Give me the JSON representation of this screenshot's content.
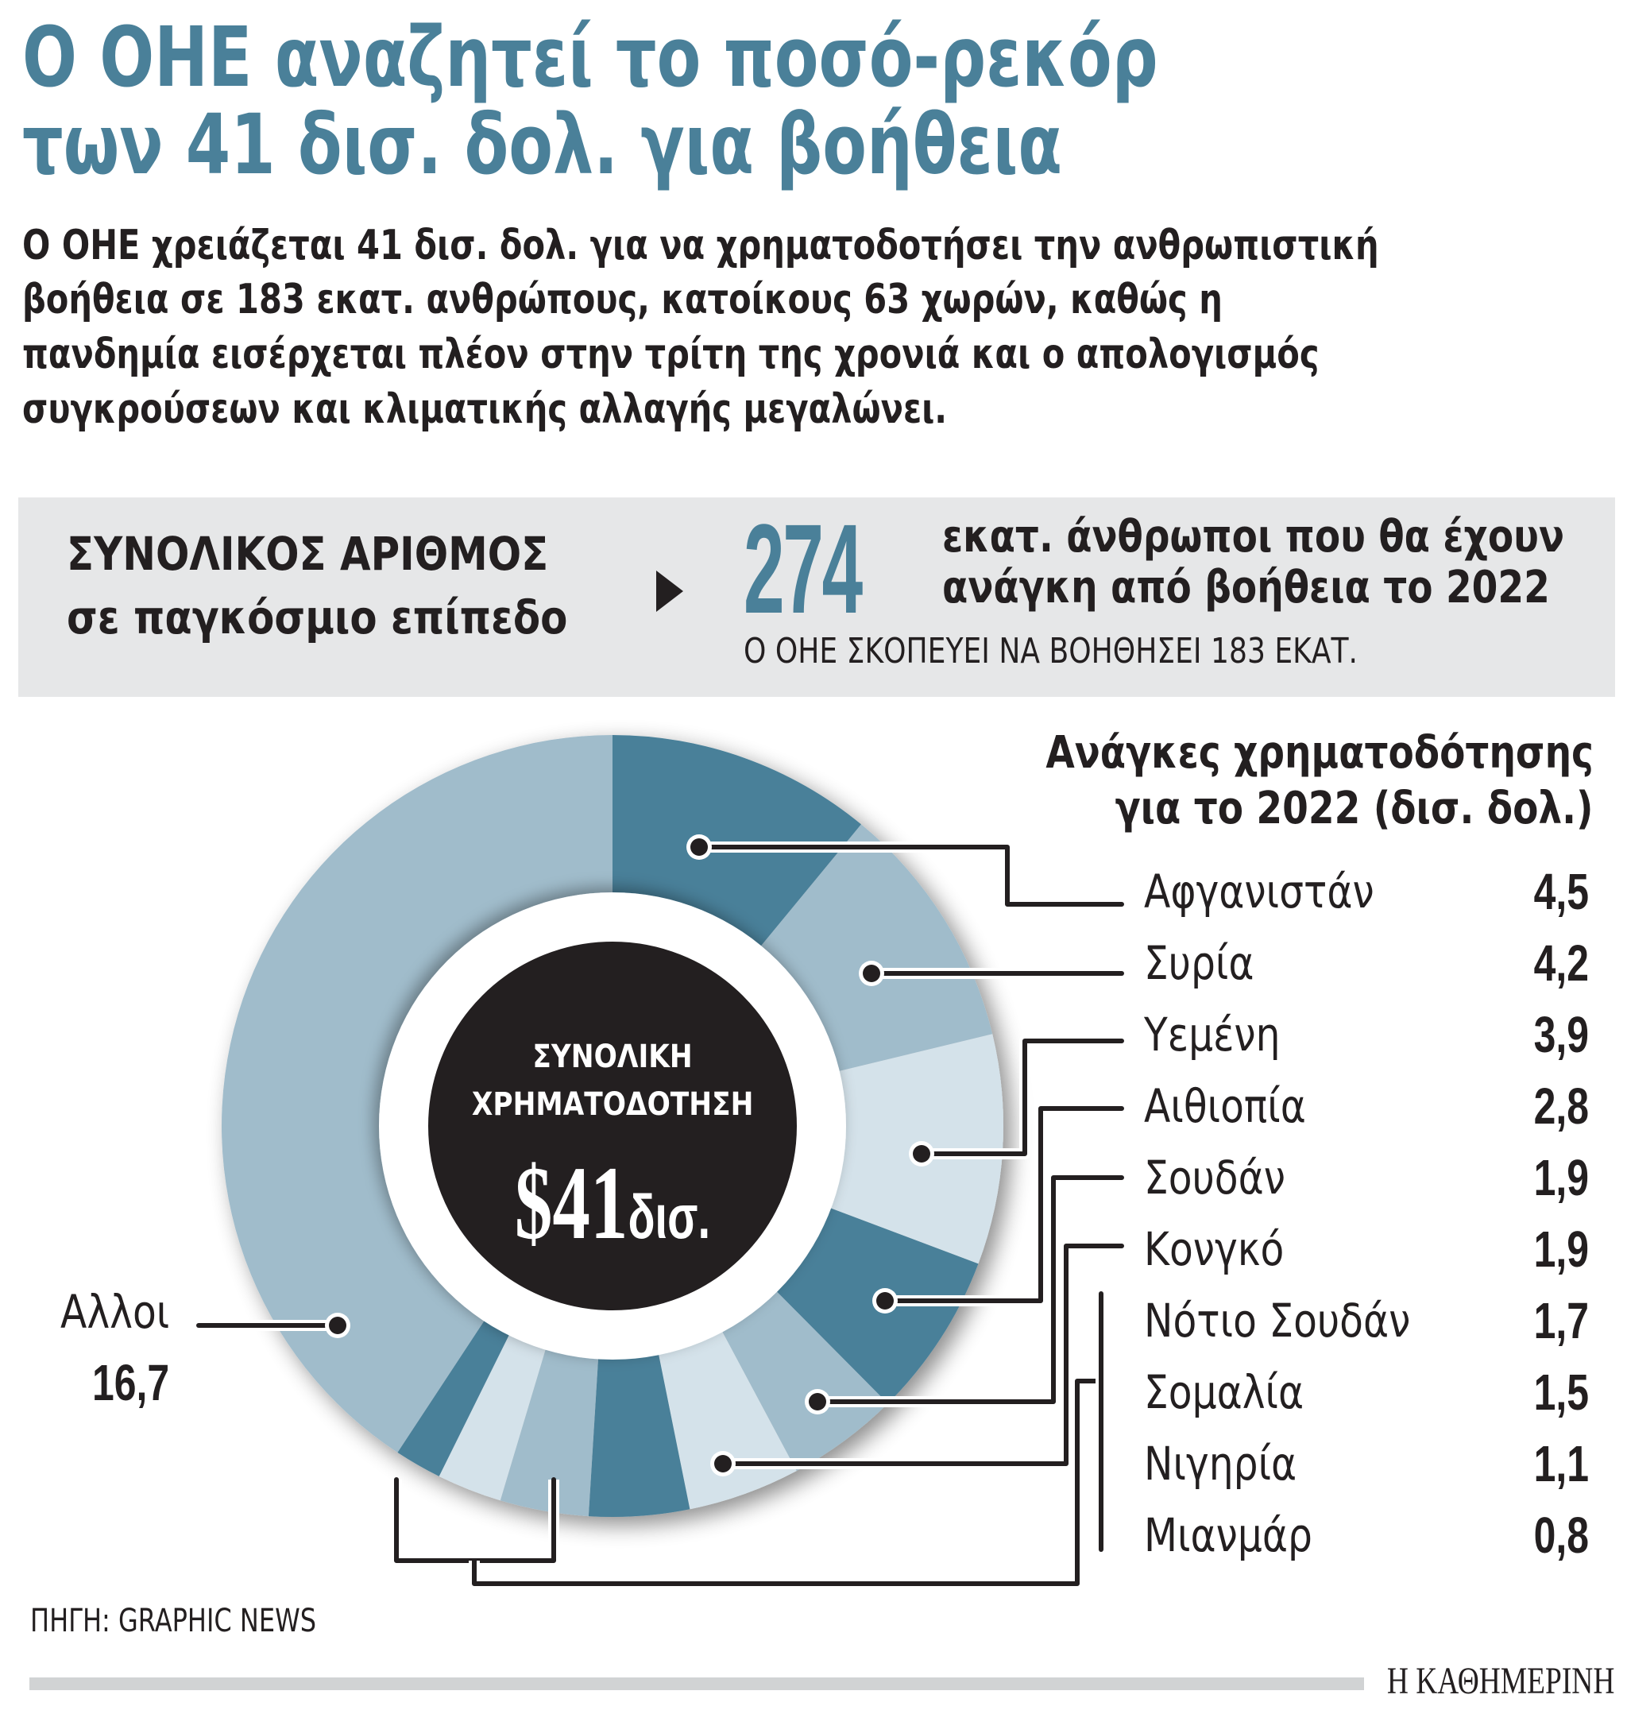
{
  "headline": {
    "line1": "Ο ΟΗΕ αναζητεί το ποσό-ρεκόρ",
    "line2": "των 41 δισ. δολ. για βοήθεια"
  },
  "lede": {
    "lines": [
      "Ο ΟΗΕ χρειάζεται 41 δισ. δολ. για να χρηματοδοτήσει την ανθρωπιστική",
      "βοήθεια σε 183 εκατ. ανθρώπους, κατοίκους 63 χωρών, καθώς η",
      "πανδημία εισέρχεται πλέον στην τρίτη της χρονιά και ο απολογισμός",
      "συγκρούσεων και κλιματικής αλλαγής μεγαλώνει."
    ]
  },
  "summary": {
    "label_line1": "ΣΥΝΟΛΙΚΟΣ ΑΡΙΘΜΟΣ",
    "label_line2": "σε παγκόσμιο επίπεδο",
    "arrow_icon": "triangle-right",
    "number": "274",
    "desc_line1": "εκατ. άνθρωποι που θα έχουν",
    "desc_line2": "ανάγκη από βοήθεια το 2022",
    "note": "Ο ΟΗΕ ΣΚΟΠΕΥΕΙ ΝΑ ΒΟΗΘΗΣΕΙ 183 ΕΚΑΤ."
  },
  "center": {
    "label_line1": "ΣΥΝΟΛΙΚΗ",
    "label_line2": "ΧΡΗΜΑΤΟΔΟΤΗΣΗ",
    "value": "$41",
    "unit": "δισ."
  },
  "legend": {
    "title_line1": "Ανάγκες χρηματοδότησης",
    "title_line2": "για το 2022 (δισ. δολ.)",
    "items": [
      {
        "name": "Αφγανιστάν",
        "value": "4,5"
      },
      {
        "name": "Συρία",
        "value": "4,2"
      },
      {
        "name": "Υεμένη",
        "value": "3,9"
      },
      {
        "name": "Αιθιοπία",
        "value": "2,8"
      },
      {
        "name": "Σουδάν",
        "value": "1,9"
      },
      {
        "name": "Κονγκό",
        "value": "1,9"
      },
      {
        "name": "Νότιο Σουδάν",
        "value": "1,7"
      },
      {
        "name": "Σομαλία",
        "value": "1,5"
      },
      {
        "name": "Νιγηρία",
        "value": "1,1"
      },
      {
        "name": "Μιανμάρ",
        "value": "0,8"
      }
    ],
    "others": {
      "name": "Αλλοι",
      "value": "16,7"
    }
  },
  "colors": {
    "accent": "#4a8099",
    "dark_segment": "#4a8099",
    "mid_segment": "#a0bccb",
    "light_segment": "#d4e2ea",
    "center_circle": "#231f20",
    "summary_bg": "#e6e7e8",
    "text": "#231f20"
  },
  "footer": {
    "source": "ΠΗΓΗ: GRAPHIC NEWS",
    "brand": "Η ΚΑΘΗΜΕΡΙΝΗ"
  },
  "chart_data": {
    "type": "pie",
    "variant": "donut",
    "title": "Ανάγκες χρηματοδότησης για το 2022 (δισ. δολ.)",
    "center_label": "ΣΥΝΟΛΙΚΗ ΧΡΗΜΑΤΟΔΟΤΗΣΗ $41 δισ.",
    "total": 41,
    "unit": "δισ. δολ.",
    "categories": [
      "Αφγανιστάν",
      "Συρία",
      "Υεμένη",
      "Αιθιοπία",
      "Σουδάν",
      "Κονγκό",
      "Νότιο Σουδάν",
      "Σομαλία",
      "Νιγηρία",
      "Μιανμάρ",
      "Αλλοι"
    ],
    "values": [
      4.5,
      4.2,
      3.9,
      2.8,
      1.9,
      1.9,
      1.7,
      1.5,
      1.1,
      0.8,
      16.7
    ],
    "segment_colors": [
      "#4a8099",
      "#a0bccb",
      "#d4e2ea",
      "#4a8099",
      "#a0bccb",
      "#d4e2ea",
      "#4a8099",
      "#a0bccb",
      "#d4e2ea",
      "#4a8099",
      "#a0bccb"
    ],
    "start_angle_deg": 0,
    "direction": "clockwise",
    "legend_position": "right"
  }
}
